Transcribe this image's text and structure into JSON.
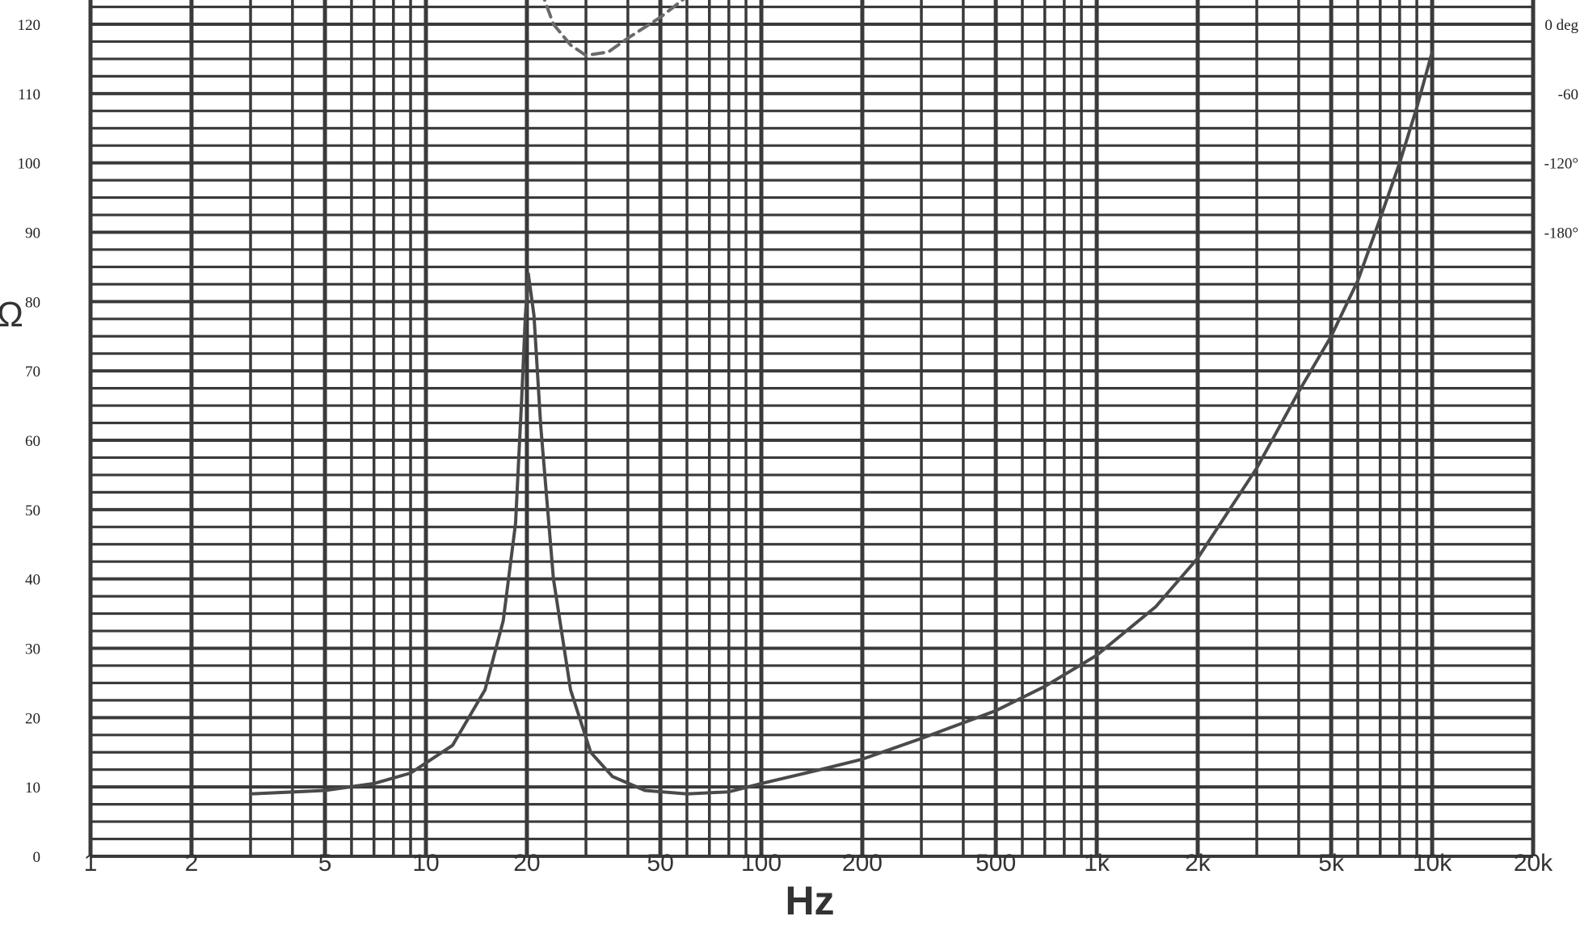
{
  "chart_data": {
    "type": "line",
    "xlabel": "Hz",
    "ylabel": "Ω",
    "x_scale": "log",
    "xlim": [
      1,
      20000
    ],
    "ylim": [
      0,
      125
    ],
    "grid": true,
    "x_ticks": [
      {
        "value": 1,
        "label": "1"
      },
      {
        "value": 2,
        "label": "2"
      },
      {
        "value": 5,
        "label": "5"
      },
      {
        "value": 10,
        "label": "10"
      },
      {
        "value": 20,
        "label": "20"
      },
      {
        "value": 50,
        "label": "50"
      },
      {
        "value": 100,
        "label": "100"
      },
      {
        "value": 200,
        "label": "200"
      },
      {
        "value": 500,
        "label": "500"
      },
      {
        "value": 1000,
        "label": "1k"
      },
      {
        "value": 2000,
        "label": "2k"
      },
      {
        "value": 5000,
        "label": "5k"
      },
      {
        "value": 10000,
        "label": "10k"
      },
      {
        "value": 20000,
        "label": "20k"
      }
    ],
    "y_ticks": [
      {
        "value": 0,
        "label": "0"
      },
      {
        "value": 10,
        "label": "10"
      },
      {
        "value": 20,
        "label": "20"
      },
      {
        "value": 30,
        "label": "30"
      },
      {
        "value": 40,
        "label": "40"
      },
      {
        "value": 50,
        "label": "50"
      },
      {
        "value": 60,
        "label": "60"
      },
      {
        "value": 70,
        "label": "70"
      },
      {
        "value": 80,
        "label": "80"
      },
      {
        "value": 90,
        "label": "90"
      },
      {
        "value": 100,
        "label": "100"
      },
      {
        "value": 110,
        "label": "110"
      },
      {
        "value": 120,
        "label": "120"
      }
    ],
    "y2_ticks": [
      {
        "value": 120,
        "label": "0 deg"
      },
      {
        "value": 110,
        "label": "-60"
      },
      {
        "value": 100,
        "label": "-120°"
      },
      {
        "value": 90,
        "label": "-180°"
      }
    ],
    "series": [
      {
        "style": "solid",
        "x": [
          3,
          5,
          7,
          9,
          12,
          15,
          17,
          18.5,
          19.3,
          19.8,
          20.2,
          21,
          22,
          24,
          27,
          31,
          36,
          45,
          60,
          80,
          100,
          150,
          200,
          300,
          500,
          700,
          1000,
          1500,
          2000,
          3000,
          4000,
          5000,
          6000,
          7000,
          8000,
          9000,
          10000
        ],
        "y": [
          9,
          9.5,
          10.5,
          12,
          16,
          24,
          34,
          48,
          66,
          78,
          84,
          78,
          62,
          40,
          24,
          15,
          11.5,
          9.5,
          9,
          9.3,
          10.5,
          12.5,
          14,
          17,
          21,
          24.5,
          29,
          36,
          43,
          56,
          67,
          75,
          83,
          92,
          100,
          108,
          116
        ]
      },
      {
        "style": "dashed",
        "x": [
          22,
          24,
          27,
          30,
          35,
          40,
          50,
          60
        ],
        "y": [
          125,
          120,
          117,
          115.5,
          116,
          118,
          121,
          124
        ]
      }
    ]
  }
}
